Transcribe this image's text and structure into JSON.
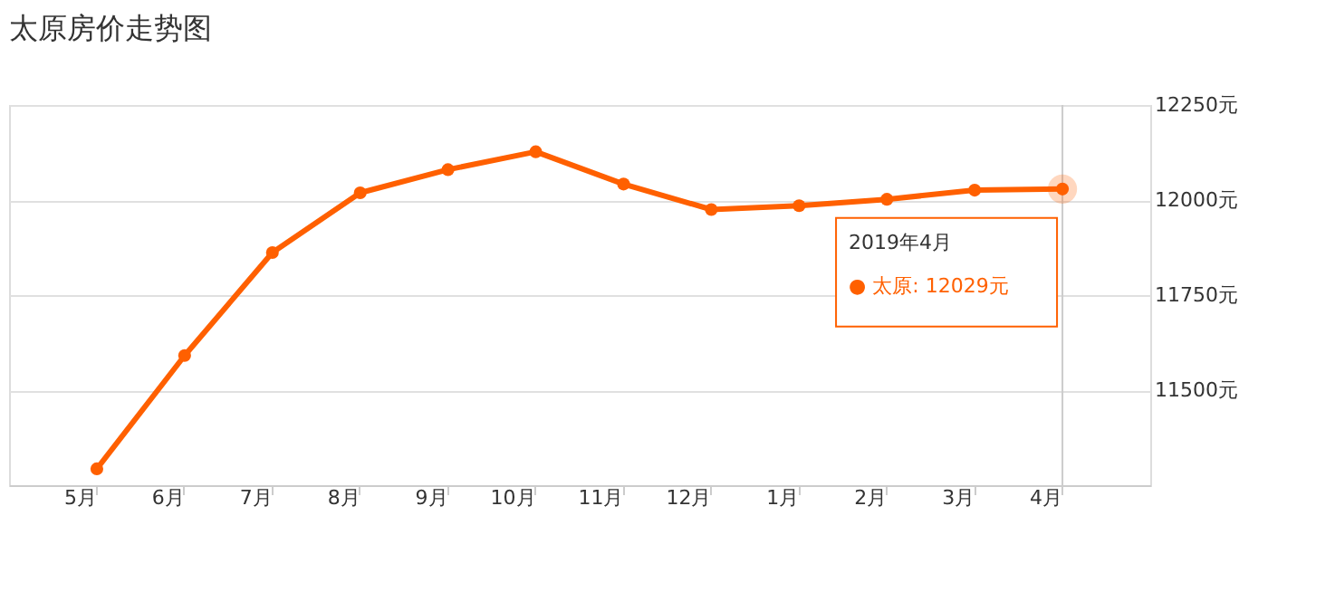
{
  "chart_data": {
    "type": "line",
    "title": "太原房价走势图",
    "categories": [
      "5月",
      "6月",
      "7月",
      "8月",
      "9月",
      "10月",
      "11月",
      "12月",
      "1月",
      "2月",
      "3月",
      "4月"
    ],
    "series": [
      {
        "color": "#ff6000",
        "values": [
          11293,
          11591,
          11862,
          12019,
          12080,
          12127,
          12042,
          11975,
          11985,
          12002,
          12026,
          12029
        ]
      }
    ],
    "ylim": [
      11250,
      12250
    ],
    "yticks": [
      {
        "value": 11500,
        "label": "11500元"
      },
      {
        "value": 11750,
        "label": "11750元"
      },
      {
        "value": 12000,
        "label": "12000元"
      },
      {
        "value": 12250,
        "label": "12250元"
      }
    ],
    "grid": "y",
    "marker": "circle",
    "line_style": "solid",
    "ref_lines": [
      {
        "axis": "x",
        "value": "4月",
        "color": "#cccccc"
      }
    ],
    "annotations": [
      "2019年4月",
      "● 太原:  12029元"
    ]
  }
}
